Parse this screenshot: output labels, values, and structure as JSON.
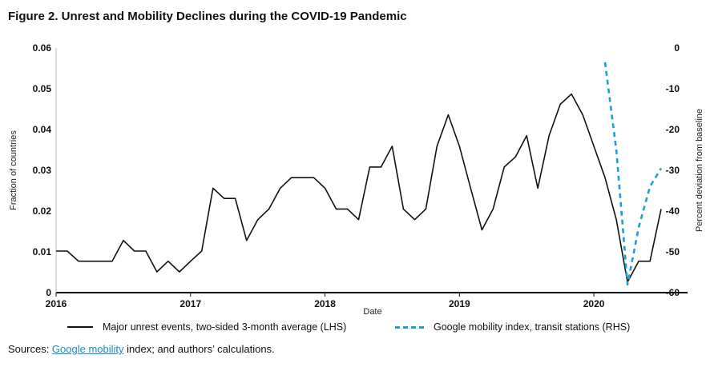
{
  "figure": {
    "title": "Figure 2. Unrest and Mobility Declines during the COVID-19 Pandemic"
  },
  "chart_data": {
    "type": "line",
    "title": "Figure 2. Unrest and Mobility Declines during the COVID-19 Pandemic",
    "xlabel": "Date",
    "ylabel_left": "Fraction of countries",
    "ylabel_right": "Percent deviation from baseline",
    "xlim": [
      2016,
      2020.5
    ],
    "ylim_left": [
      0,
      0.06
    ],
    "ylim_right": [
      -60,
      0
    ],
    "x_ticks": [
      "2016",
      "2017",
      "2018",
      "2019",
      "2020"
    ],
    "y_left_ticks": [
      "0",
      "0.01",
      "0.02",
      "0.03",
      "0.04",
      "0.05",
      "0.06"
    ],
    "y_right_ticks": [
      "0",
      "-10",
      "-20",
      "-30",
      "-40",
      "-50",
      "-60"
    ],
    "grid": false,
    "legend_position": "bottom",
    "series": [
      {
        "name": "Major unrest events, two-sided 3-month average (LHS)",
        "axis": "left",
        "style": "solid",
        "color": "#111111",
        "x": [
          2016.0,
          2016.083,
          2016.167,
          2016.25,
          2016.333,
          2016.417,
          2016.5,
          2016.583,
          2016.667,
          2016.75,
          2016.833,
          2016.917,
          2017.0,
          2017.083,
          2017.167,
          2017.25,
          2017.333,
          2017.417,
          2017.5,
          2017.583,
          2017.667,
          2017.75,
          2017.833,
          2017.917,
          2018.0,
          2018.083,
          2018.167,
          2018.25,
          2018.333,
          2018.417,
          2018.5,
          2018.583,
          2018.667,
          2018.75,
          2018.833,
          2018.917,
          2019.0,
          2019.083,
          2019.167,
          2019.25,
          2019.333,
          2019.417,
          2019.5,
          2019.583,
          2019.667,
          2019.75,
          2019.833,
          2019.917,
          2020.0,
          2020.083,
          2020.167,
          2020.25,
          2020.333,
          2020.417,
          2020.5
        ],
        "values": [
          0.0102,
          0.0102,
          0.0077,
          0.0077,
          0.0077,
          0.0077,
          0.0128,
          0.0102,
          0.0102,
          0.0051,
          0.0077,
          0.0051,
          0.0077,
          0.0102,
          0.0256,
          0.0231,
          0.0231,
          0.0128,
          0.0179,
          0.0205,
          0.0256,
          0.0282,
          0.0282,
          0.0282,
          0.0256,
          0.0205,
          0.0205,
          0.0179,
          0.0308,
          0.0308,
          0.0359,
          0.0205,
          0.0179,
          0.0205,
          0.0359,
          0.0436,
          0.0359,
          0.0256,
          0.0154,
          0.0205,
          0.0308,
          0.0333,
          0.0385,
          0.0256,
          0.0385,
          0.0462,
          0.0487,
          0.0436,
          0.0359,
          0.0282,
          0.0179,
          0.0026,
          0.0077,
          0.0077,
          0.0205
        ]
      },
      {
        "name": "Google mobility index, transit stations (RHS)",
        "axis": "right",
        "style": "dashed",
        "color": "#1aa0d8",
        "x": [
          2020.083,
          2020.167,
          2020.25,
          2020.333,
          2020.417,
          2020.5
        ],
        "values": [
          -3.5,
          -25,
          -58,
          -44,
          -34,
          -29.5
        ]
      }
    ]
  },
  "sources": {
    "prefix": "Sources: ",
    "link_text": "Google mobility",
    "suffix": " index; and authors’ calculations."
  }
}
